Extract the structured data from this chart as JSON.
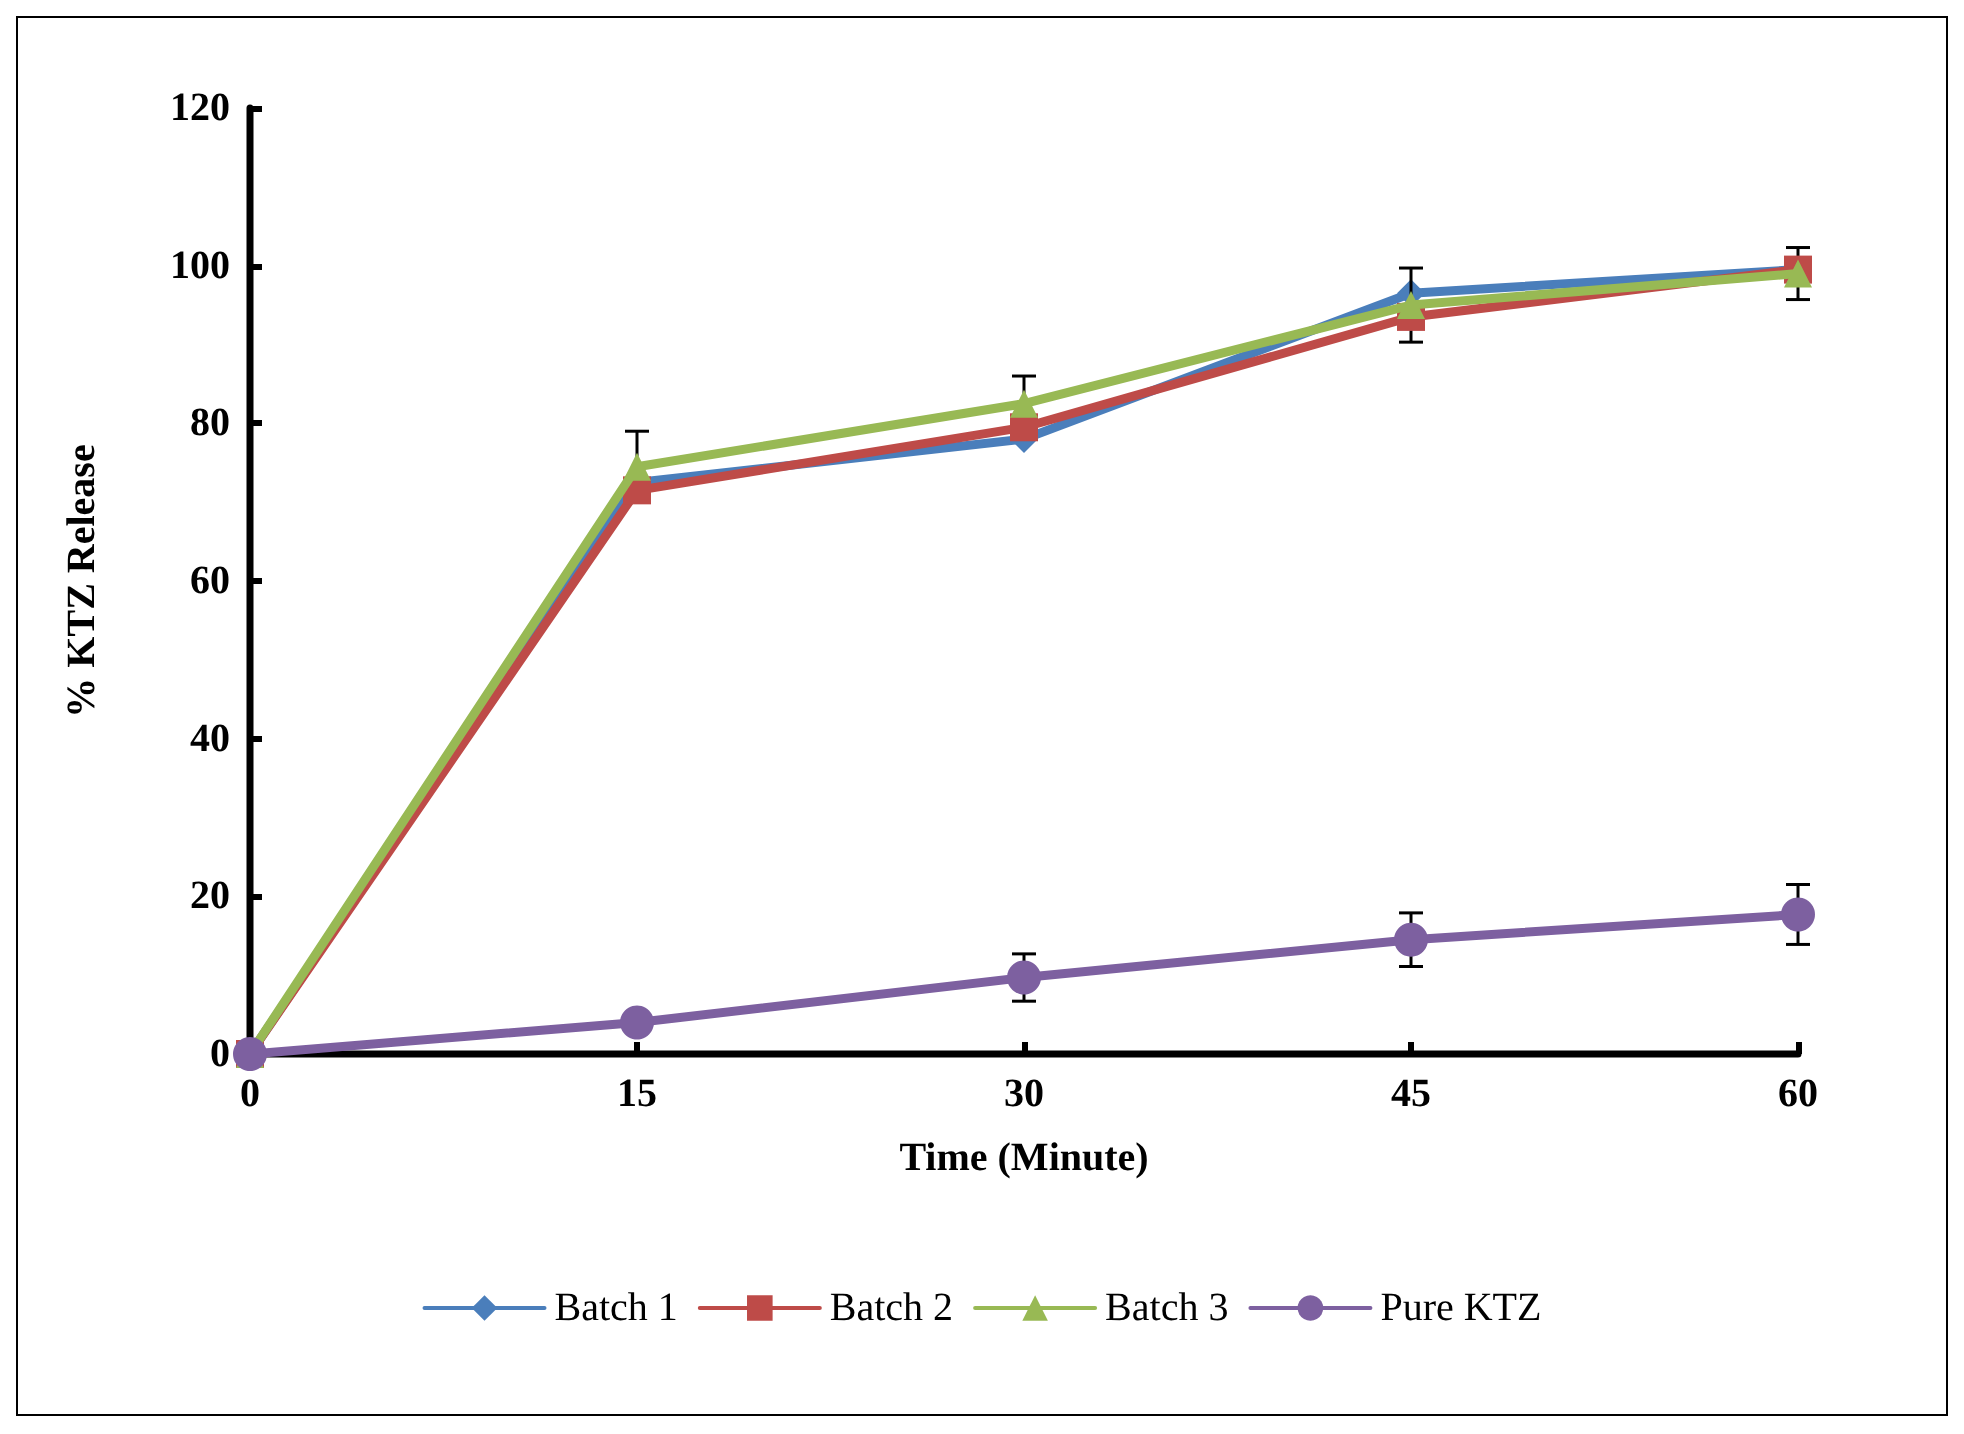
{
  "chart_data": {
    "type": "line",
    "xlabel": "Time (Minute)",
    "ylabel": "% KTZ Release",
    "x": [
      0,
      15,
      30,
      45,
      60
    ],
    "series": [
      {
        "name": "Batch 1",
        "color": "#4a7ebb",
        "marker": "diamond",
        "values": [
          0,
          72.5,
          78,
          96.5,
          99.5
        ]
      },
      {
        "name": "Batch 2",
        "color": "#be4b48",
        "marker": "square",
        "values": [
          0,
          71.5,
          79.5,
          93.5,
          99.5
        ]
      },
      {
        "name": "Batch 3",
        "color": "#98b954",
        "marker": "triangle",
        "values": [
          0,
          74.5,
          82.5,
          95,
          99
        ],
        "errors": [
          null,
          4.5,
          3.5,
          4.7,
          3.3
        ]
      },
      {
        "name": "Pure KTZ",
        "color": "#7d60a0",
        "marker": "circle",
        "values": [
          0,
          4,
          9.7,
          14.5,
          17.7
        ],
        "errors": [
          null,
          null,
          3,
          3.4,
          3.8
        ]
      }
    ],
    "xlim": [
      0,
      60
    ],
    "xticks": [
      0,
      15,
      30,
      45,
      60
    ],
    "ylim": [
      0,
      120
    ],
    "yticks": [
      0,
      20,
      40,
      60,
      80,
      100,
      120
    ],
    "grid": false,
    "legend": "bottom"
  }
}
